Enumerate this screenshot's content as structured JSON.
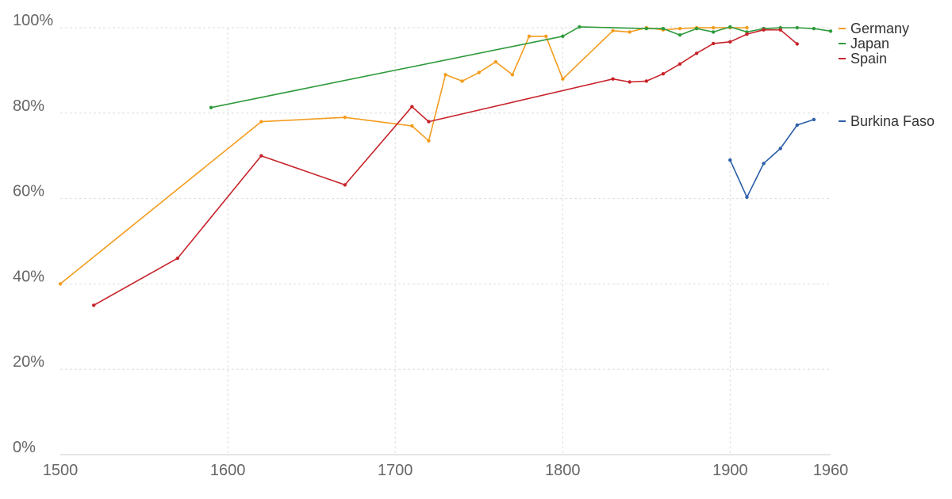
{
  "chart_data": {
    "type": "line",
    "xlim": [
      1500,
      1960
    ],
    "ylim": [
      0,
      100
    ],
    "x_ticks": [
      1500,
      1600,
      1700,
      1800,
      1900,
      1960
    ],
    "y_ticks": [
      0,
      20,
      40,
      60,
      80,
      100
    ],
    "y_tick_labels": [
      "0%",
      "20%",
      "40%",
      "60%",
      "80%",
      "100%"
    ],
    "grid": true,
    "legend_position": "right",
    "series": [
      {
        "name": "Germany",
        "color": "#f39c1e",
        "points": [
          [
            1500,
            40
          ],
          [
            1620,
            78
          ],
          [
            1670,
            79
          ],
          [
            1710,
            77
          ],
          [
            1720,
            73.5
          ],
          [
            1730,
            89
          ],
          [
            1740,
            87.5
          ],
          [
            1750,
            89.5
          ],
          [
            1760,
            92
          ],
          [
            1770,
            89
          ],
          [
            1780,
            98
          ],
          [
            1790,
            98
          ],
          [
            1800,
            88
          ],
          [
            1830,
            99.3
          ],
          [
            1840,
            99
          ],
          [
            1850,
            100
          ],
          [
            1860,
            99.5
          ],
          [
            1870,
            99.8
          ],
          [
            1880,
            100
          ],
          [
            1890,
            100
          ],
          [
            1900,
            100
          ],
          [
            1910,
            100
          ]
        ]
      },
      {
        "name": "Japan",
        "color": "#2e9a3b",
        "points": [
          [
            1590,
            81.3
          ],
          [
            1800,
            98
          ],
          [
            1810,
            100.2
          ],
          [
            1850,
            99.8
          ],
          [
            1860,
            99.8
          ],
          [
            1870,
            98.3
          ],
          [
            1880,
            99.8
          ],
          [
            1890,
            99
          ],
          [
            1900,
            100.2
          ],
          [
            1910,
            99
          ],
          [
            1920,
            99.8
          ],
          [
            1930,
            100
          ],
          [
            1940,
            100
          ],
          [
            1950,
            99.8
          ],
          [
            1960,
            99.2
          ]
        ]
      },
      {
        "name": "Spain",
        "color": "#c8232b",
        "points": [
          [
            1520,
            35
          ],
          [
            1570,
            46
          ],
          [
            1620,
            70
          ],
          [
            1670,
            63.2
          ],
          [
            1710,
            81.5
          ],
          [
            1720,
            78
          ],
          [
            1830,
            88
          ],
          [
            1840,
            87.3
          ],
          [
            1850,
            87.5
          ],
          [
            1860,
            89.2
          ],
          [
            1870,
            91.5
          ],
          [
            1880,
            94
          ],
          [
            1890,
            96.3
          ],
          [
            1900,
            96.7
          ],
          [
            1910,
            98.5
          ],
          [
            1920,
            99.5
          ],
          [
            1930,
            99.5
          ],
          [
            1940,
            96.2
          ]
        ]
      },
      {
        "name": "Burkina Faso",
        "color": "#2c5fa8",
        "points": [
          [
            1900,
            69
          ],
          [
            1910,
            60.3
          ],
          [
            1920,
            68.2
          ],
          [
            1930,
            71.7
          ],
          [
            1940,
            77.2
          ],
          [
            1950,
            78.5
          ]
        ]
      }
    ]
  }
}
